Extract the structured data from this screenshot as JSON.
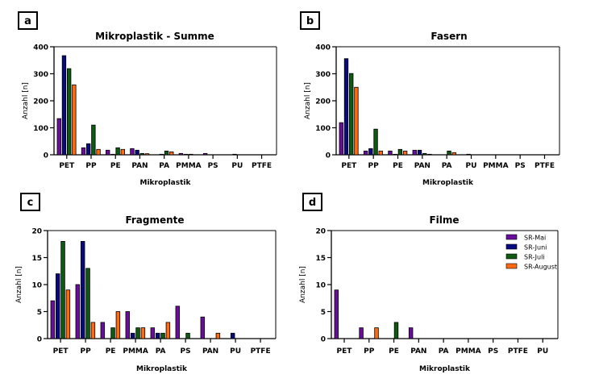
{
  "legend": {
    "entries": [
      "SR-Mai",
      "SR-Juni",
      "SR-Juli",
      "SR-August"
    ],
    "colors": [
      "#6a0d9c",
      "#0a0a80",
      "#0d5a10",
      "#ff6a10"
    ],
    "placement": "top-right",
    "shown_in_panel": "d"
  },
  "chart_data": [
    {
      "panel": "a",
      "type": "bar",
      "title": "Mikroplastik - Summe",
      "xlabel": "Mikroplastik",
      "ylabel": "Anzahl [n]",
      "ylim": [
        0,
        400
      ],
      "yticks": [
        0,
        100,
        200,
        300,
        400
      ],
      "categories": [
        "PET",
        "PP",
        "PE",
        "PAN",
        "PA",
        "PMMA",
        "PS",
        "PU",
        "PTFE"
      ],
      "series": [
        {
          "name": "SR-Mai",
          "values": [
            134,
            26,
            17,
            23,
            0,
            5,
            5,
            0,
            0
          ]
        },
        {
          "name": "SR-Juni",
          "values": [
            367,
            41,
            2,
            17,
            2,
            2,
            0,
            2,
            0
          ]
        },
        {
          "name": "SR-Juli",
          "values": [
            319,
            110,
            26,
            5,
            14,
            2,
            0,
            0,
            0
          ]
        },
        {
          "name": "SR-August",
          "values": [
            259,
            20,
            20,
            4,
            11,
            0,
            0,
            0,
            0
          ]
        }
      ]
    },
    {
      "panel": "b",
      "type": "bar",
      "title": "Fasern",
      "xlabel": "Mikroplastik",
      "ylabel": "Anzahl [n]",
      "ylim": [
        0,
        400
      ],
      "yticks": [
        0,
        100,
        200,
        300,
        400
      ],
      "categories": [
        "PET",
        "PP",
        "PE",
        "PAN",
        "PA",
        "PU",
        "PMMA",
        "PS",
        "PTFE"
      ],
      "series": [
        {
          "name": "SR-Mai",
          "values": [
            119,
            14,
            14,
            17,
            0,
            0,
            0,
            0,
            0
          ]
        },
        {
          "name": "SR-Juni",
          "values": [
            356,
            23,
            2,
            17,
            0,
            2,
            0,
            0,
            0
          ]
        },
        {
          "name": "SR-Juli",
          "values": [
            301,
            95,
            20,
            5,
            14,
            0,
            0,
            0,
            0
          ]
        },
        {
          "name": "SR-August",
          "values": [
            250,
            14,
            14,
            2,
            8,
            0,
            0,
            0,
            0
          ]
        }
      ]
    },
    {
      "panel": "c",
      "type": "bar",
      "title": "Fragmente",
      "xlabel": "Mikroplastik",
      "ylabel": "Anzahl [n]",
      "ylim": [
        0,
        20
      ],
      "yticks": [
        0,
        5,
        10,
        15,
        20
      ],
      "categories": [
        "PET",
        "PP",
        "PE",
        "PMMA",
        "PA",
        "PS",
        "PAN",
        "PU",
        "PTFE"
      ],
      "series": [
        {
          "name": "SR-Mai",
          "values": [
            7,
            10,
            3,
            5,
            2,
            6,
            4,
            0,
            0
          ]
        },
        {
          "name": "SR-Juni",
          "values": [
            12,
            18,
            0,
            1,
            1,
            0,
            0,
            1,
            0
          ]
        },
        {
          "name": "SR-Juli",
          "values": [
            18,
            13,
            2,
            2,
            1,
            1,
            0,
            0,
            0
          ]
        },
        {
          "name": "SR-August",
          "values": [
            9,
            3,
            5,
            2,
            3,
            0,
            1,
            0,
            0
          ]
        }
      ]
    },
    {
      "panel": "d",
      "type": "bar",
      "title": "Filme",
      "xlabel": "Mikroplastik",
      "ylabel": "Anzahl [n]",
      "ylim": [
        0,
        20
      ],
      "yticks": [
        0,
        5,
        10,
        15,
        20
      ],
      "categories": [
        "PET",
        "PP",
        "PE",
        "PAN",
        "PA",
        "PMMA",
        "PS",
        "PTFE",
        "PU"
      ],
      "series": [
        {
          "name": "SR-Mai",
          "values": [
            9,
            2,
            0,
            2,
            0,
            0,
            0,
            0,
            0
          ]
        },
        {
          "name": "SR-Juni",
          "values": [
            0,
            0,
            0,
            0,
            0,
            0,
            0,
            0,
            0
          ]
        },
        {
          "name": "SR-Juli",
          "values": [
            0,
            0,
            3,
            0,
            0,
            0,
            0,
            0,
            0
          ]
        },
        {
          "name": "SR-August",
          "values": [
            0,
            2,
            0,
            0,
            0,
            0,
            0,
            0,
            0
          ]
        }
      ]
    }
  ]
}
